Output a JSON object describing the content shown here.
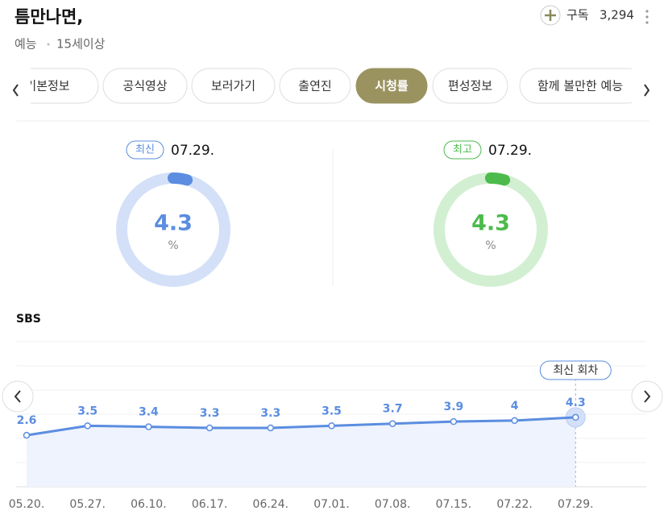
{
  "header": {
    "title": "틈만나면,",
    "genre": "예능",
    "age": "15세이상",
    "subscribe_label": "구독",
    "subscribers": "3,294"
  },
  "tabs": [
    "기본정보",
    "공식영상",
    "보러가기",
    "출연진",
    "시청률",
    "편성정보",
    "함께 볼만한 예능"
  ],
  "summary": {
    "latest": {
      "badge": "최신",
      "date": "07.29.",
      "value": 4.3,
      "unit": "%",
      "color": "#5b8de0",
      "ring": "#d3e0f8"
    },
    "best": {
      "badge": "최고",
      "date": "07.29.",
      "value": 4.3,
      "unit": "%",
      "color": "#4cbb4c",
      "ring": "#d2efd2"
    }
  },
  "chart": {
    "channel": "SBS",
    "annotation": "최신 회차",
    "x": [
      "05.20.",
      "05.27.",
      "06.10.",
      "06.17.",
      "06.24.",
      "07.01.",
      "07.08.",
      "07.15.",
      "07.22.",
      "07.29."
    ],
    "values": [
      2.6,
      3.5,
      3.4,
      3.3,
      3.3,
      3.5,
      3.7,
      3.9,
      4.0,
      4.3
    ],
    "ylim": [
      -2.3,
      11.5
    ],
    "color": "#5b8de0"
  }
}
